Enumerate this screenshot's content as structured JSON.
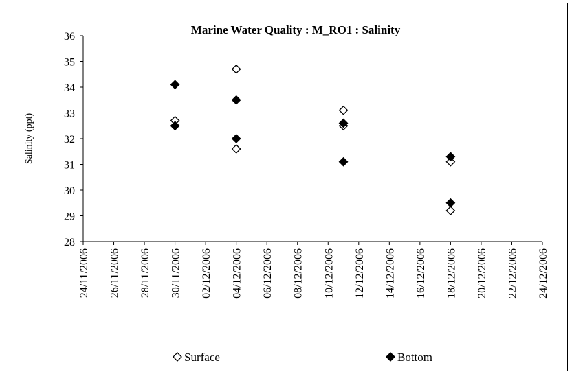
{
  "chart_data": {
    "type": "scatter",
    "title": "Marine Water Quality : M_RO1 : Salinity",
    "ylabel": "Salinity (ppt)",
    "xlabel": "",
    "ylim": [
      28,
      36
    ],
    "yticks": [
      28,
      29,
      30,
      31,
      32,
      33,
      34,
      35,
      36
    ],
    "xlim": [
      "2006-11-24",
      "2006-12-24"
    ],
    "xticks": [
      "24/11/2006",
      "26/11/2006",
      "28/11/2006",
      "30/11/2006",
      "02/12/2006",
      "04/12/2006",
      "06/12/2006",
      "08/12/2006",
      "10/12/2006",
      "12/12/2006",
      "14/12/2006",
      "16/12/2006",
      "18/12/2006",
      "20/12/2006",
      "22/12/2006",
      "24/12/2006"
    ],
    "legend_position": "bottom",
    "grid": false,
    "series": [
      {
        "name": "Surface",
        "marker": "open-diamond",
        "color": "#000000",
        "points": [
          {
            "x": "2006-11-30",
            "y": 32.7
          },
          {
            "x": "2006-11-30",
            "y": 32.5
          },
          {
            "x": "2006-12-04",
            "y": 34.7
          },
          {
            "x": "2006-12-04",
            "y": 31.6
          },
          {
            "x": "2006-12-11",
            "y": 33.1
          },
          {
            "x": "2006-12-11",
            "y": 32.5
          },
          {
            "x": "2006-12-18",
            "y": 31.1
          },
          {
            "x": "2006-12-18",
            "y": 29.2
          }
        ]
      },
      {
        "name": "Bottom",
        "marker": "filled-diamond",
        "color": "#000000",
        "points": [
          {
            "x": "2006-11-30",
            "y": 34.1
          },
          {
            "x": "2006-11-30",
            "y": 32.5
          },
          {
            "x": "2006-12-04",
            "y": 33.5
          },
          {
            "x": "2006-12-04",
            "y": 32.0
          },
          {
            "x": "2006-12-11",
            "y": 32.6
          },
          {
            "x": "2006-12-11",
            "y": 31.1
          },
          {
            "x": "2006-12-18",
            "y": 31.3
          },
          {
            "x": "2006-12-18",
            "y": 29.5
          }
        ]
      }
    ]
  }
}
